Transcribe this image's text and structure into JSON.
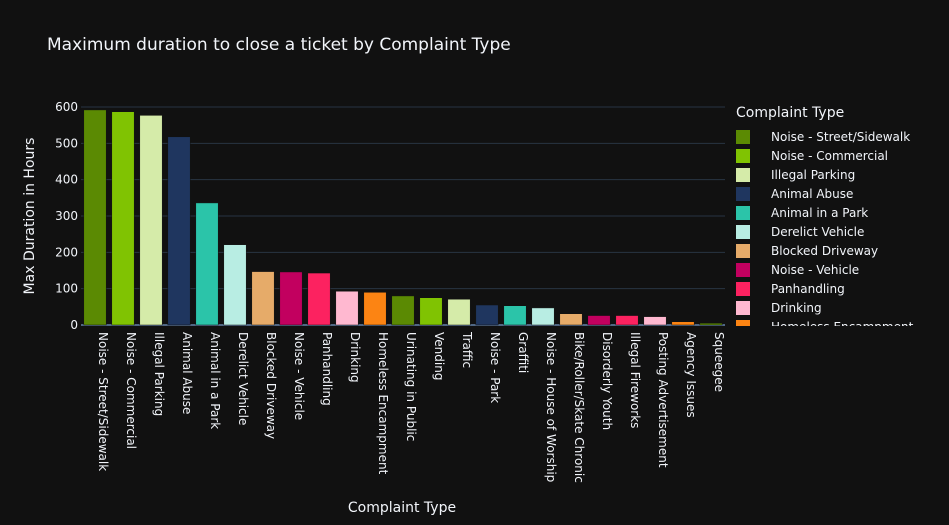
{
  "chart_data": {
    "type": "bar",
    "title": "Maximum duration to close a ticket by Complaint Type",
    "xlabel": "Complaint Type",
    "ylabel": "Max Duration in Hours",
    "ylim": [
      0,
      620
    ],
    "yticks": [
      0,
      100,
      200,
      300,
      400,
      500,
      600
    ],
    "grid": true,
    "legend_title": "Complaint Type",
    "legend_position": "right",
    "categories": [
      "Noise - Street/Sidewalk",
      "Noise - Commercial",
      "Illegal Parking",
      "Animal Abuse",
      "Animal in a Park",
      "Derelict Vehicle",
      "Blocked Driveway",
      "Noise - Vehicle",
      "Panhandling",
      "Drinking",
      "Homeless Encampment",
      "Urinating in Public",
      "Vending",
      "Traffic",
      "Noise - Park",
      "Graffiti",
      "Noise - House of Worship",
      "Bike/Roller/Skate Chronic",
      "Disorderly Youth",
      "Illegal Fireworks",
      "Posting Advertisement",
      "Agency Issues",
      "Squeegee"
    ],
    "values": [
      592,
      587,
      577,
      518,
      336,
      221,
      147,
      146,
      143,
      93,
      90,
      80,
      75,
      71,
      55,
      53,
      47,
      31,
      26,
      26,
      23,
      9,
      5
    ],
    "colors": [
      "#5b8a03",
      "#80c302",
      "#d5eba9",
      "#1f365f",
      "#2bc4a9",
      "#b8ede3",
      "#e6ab69",
      "#c2005f",
      "#fc2260",
      "#ffb8d0",
      "#fc8413",
      "#5b8a03",
      "#80c302",
      "#d5eba9",
      "#1f365f",
      "#2bc4a9",
      "#b8ede3",
      "#e6ab69",
      "#c2005f",
      "#fc2260",
      "#ffb8d0",
      "#fc8413",
      "#5b8a03"
    ],
    "legend_entries": [
      "Noise - Street/Sidewalk",
      "Noise - Commercial",
      "Illegal Parking",
      "Animal Abuse",
      "Animal in a Park",
      "Derelict Vehicle",
      "Blocked Driveway",
      "Noise - Vehicle",
      "Panhandling",
      "Drinking",
      "Homeless Encampment"
    ]
  }
}
